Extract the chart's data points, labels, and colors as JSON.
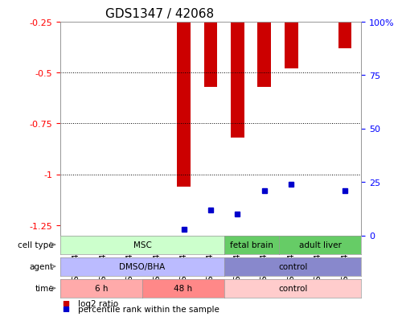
{
  "title": "GDS1347 / 42068",
  "samples": [
    "GSM60436",
    "GSM60437",
    "GSM60438",
    "GSM60440",
    "GSM60442",
    "GSM60444",
    "GSM60433",
    "GSM60434",
    "GSM60448",
    "GSM60450",
    "GSM60451"
  ],
  "log2_ratio": [
    0,
    0,
    0,
    0,
    -1.06,
    -0.57,
    -0.82,
    -0.57,
    -0.48,
    0,
    -0.38
  ],
  "percentile_rank": [
    0,
    0,
    0,
    0,
    3,
    12,
    10,
    21,
    24,
    0,
    21
  ],
  "ylim_left": [
    -1.3,
    -0.25
  ],
  "ylim_right": [
    0,
    100
  ],
  "yticks_left": [
    -1.25,
    -1.0,
    -0.75,
    -0.5,
    -0.25
  ],
  "yticks_right": [
    0,
    25,
    50,
    75,
    100
  ],
  "ytick_labels_left": [
    "-1.25",
    "-1",
    "-0.75",
    "-0.5",
    "-0.25"
  ],
  "ytick_labels_right": [
    "0",
    "25",
    "50",
    "75",
    "100%"
  ],
  "bar_color": "#cc0000",
  "percentile_color": "#0000cc",
  "cell_type_groups": [
    {
      "label": "MSC",
      "start": 0,
      "end": 5,
      "color": "#ccffcc"
    },
    {
      "label": "fetal brain",
      "start": 6,
      "end": 7,
      "color": "#66cc66"
    },
    {
      "label": "adult liver",
      "start": 8,
      "end": 10,
      "color": "#66cc66"
    }
  ],
  "agent_groups": [
    {
      "label": "DMSO/BHA",
      "start": 0,
      "end": 5,
      "color": "#bbbbff"
    },
    {
      "label": "control",
      "start": 6,
      "end": 10,
      "color": "#8888cc"
    }
  ],
  "time_groups": [
    {
      "label": "6 h",
      "start": 0,
      "end": 2,
      "color": "#ffaaaa"
    },
    {
      "label": "48 h",
      "start": 3,
      "end": 5,
      "color": "#ff8888"
    },
    {
      "label": "control",
      "start": 6,
      "end": 10,
      "color": "#ffcccc"
    }
  ],
  "row_labels": [
    "cell type",
    "agent",
    "time"
  ],
  "legend_items": [
    {
      "color": "#cc0000",
      "label": "log2 ratio"
    },
    {
      "color": "#0000cc",
      "label": "percentile rank within the sample"
    }
  ],
  "grid_color": "black",
  "background_color": "white",
  "spine_color": "#999999"
}
